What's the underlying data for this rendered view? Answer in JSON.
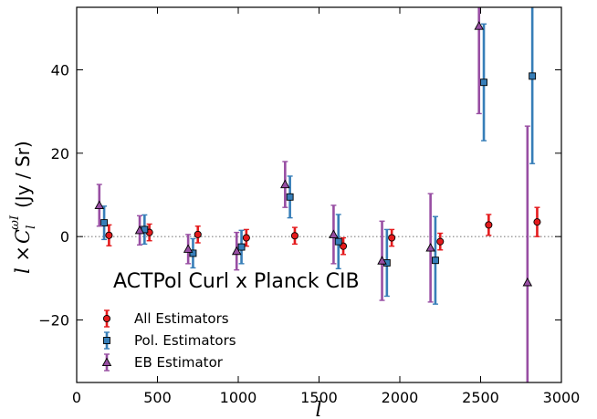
{
  "chart_data": {
    "type": "scatter",
    "title": "",
    "annotation": "ACTPol Curl x Planck CIB",
    "xlabel": "l",
    "ylabel_prefix": "l ×",
    "ylabel_symbol": "C",
    "ylabel_sub": "l",
    "ylabel_sup": "ωI",
    "ylabel_unit": "(Jy / Sr)",
    "xlim": [
      0,
      3000
    ],
    "ylim": [
      -35,
      55
    ],
    "xticks": [
      0,
      500,
      1000,
      1500,
      2000,
      2500,
      3000
    ],
    "xtick_labels": [
      "0",
      "500",
      "1000",
      "1500",
      "2000",
      "2500",
      "3000"
    ],
    "yticks": [
      -20,
      0,
      20,
      40
    ],
    "ytick_labels": [
      "−20",
      "0",
      "20",
      "40"
    ],
    "zero_line": true,
    "legend_position": "lower-left",
    "series": [
      {
        "name": "All Estimators",
        "marker": "circle",
        "color": "#e41a1c",
        "points": [
          {
            "x": 200,
            "y": 0.3,
            "err": 2.5
          },
          {
            "x": 450,
            "y": 1.0,
            "err": 2.0
          },
          {
            "x": 750,
            "y": 0.5,
            "err": 2.0
          },
          {
            "x": 1050,
            "y": -0.3,
            "err": 2.0
          },
          {
            "x": 1350,
            "y": 0.2,
            "err": 2.0
          },
          {
            "x": 1650,
            "y": -2.3,
            "err": 2.0
          },
          {
            "x": 1950,
            "y": -0.3,
            "err": 2.0
          },
          {
            "x": 2250,
            "y": -1.2,
            "err": 2.0
          },
          {
            "x": 2550,
            "y": 2.8,
            "err": 2.5
          },
          {
            "x": 2850,
            "y": 3.5,
            "err": 3.5
          }
        ]
      },
      {
        "name": "Pol. Estimators",
        "marker": "square",
        "color": "#377eb8",
        "points": [
          {
            "x": 170,
            "y": 3.3,
            "err": 4.0
          },
          {
            "x": 420,
            "y": 1.7,
            "err": 3.5
          },
          {
            "x": 720,
            "y": -4.0,
            "err": 3.5
          },
          {
            "x": 1020,
            "y": -2.5,
            "err": 4.0
          },
          {
            "x": 1320,
            "y": 9.5,
            "err": 5.0
          },
          {
            "x": 1620,
            "y": -1.2,
            "err": 6.5
          },
          {
            "x": 1920,
            "y": -6.3,
            "err": 8.0
          },
          {
            "x": 2220,
            "y": -5.7,
            "err": 10.5
          },
          {
            "x": 2520,
            "y": 37.0,
            "err": 14.0
          },
          {
            "x": 2820,
            "y": 38.5,
            "err": 21.0
          }
        ]
      },
      {
        "name": "EB Estimator",
        "marker": "triangle",
        "color": "#984ea3",
        "points": [
          {
            "x": 140,
            "y": 7.5,
            "err": 5.0
          },
          {
            "x": 390,
            "y": 1.5,
            "err": 3.5
          },
          {
            "x": 690,
            "y": -3.0,
            "err": 3.5
          },
          {
            "x": 990,
            "y": -3.5,
            "err": 4.5
          },
          {
            "x": 1290,
            "y": 12.5,
            "err": 5.5
          },
          {
            "x": 1590,
            "y": 0.5,
            "err": 7.0
          },
          {
            "x": 1890,
            "y": -5.8,
            "err": 9.5
          },
          {
            "x": 2190,
            "y": -2.7,
            "err": 13.0
          },
          {
            "x": 2490,
            "y": 50.5,
            "err": 21.0
          },
          {
            "x": 2790,
            "y": -11.0,
            "err": 37.5
          }
        ]
      }
    ]
  }
}
